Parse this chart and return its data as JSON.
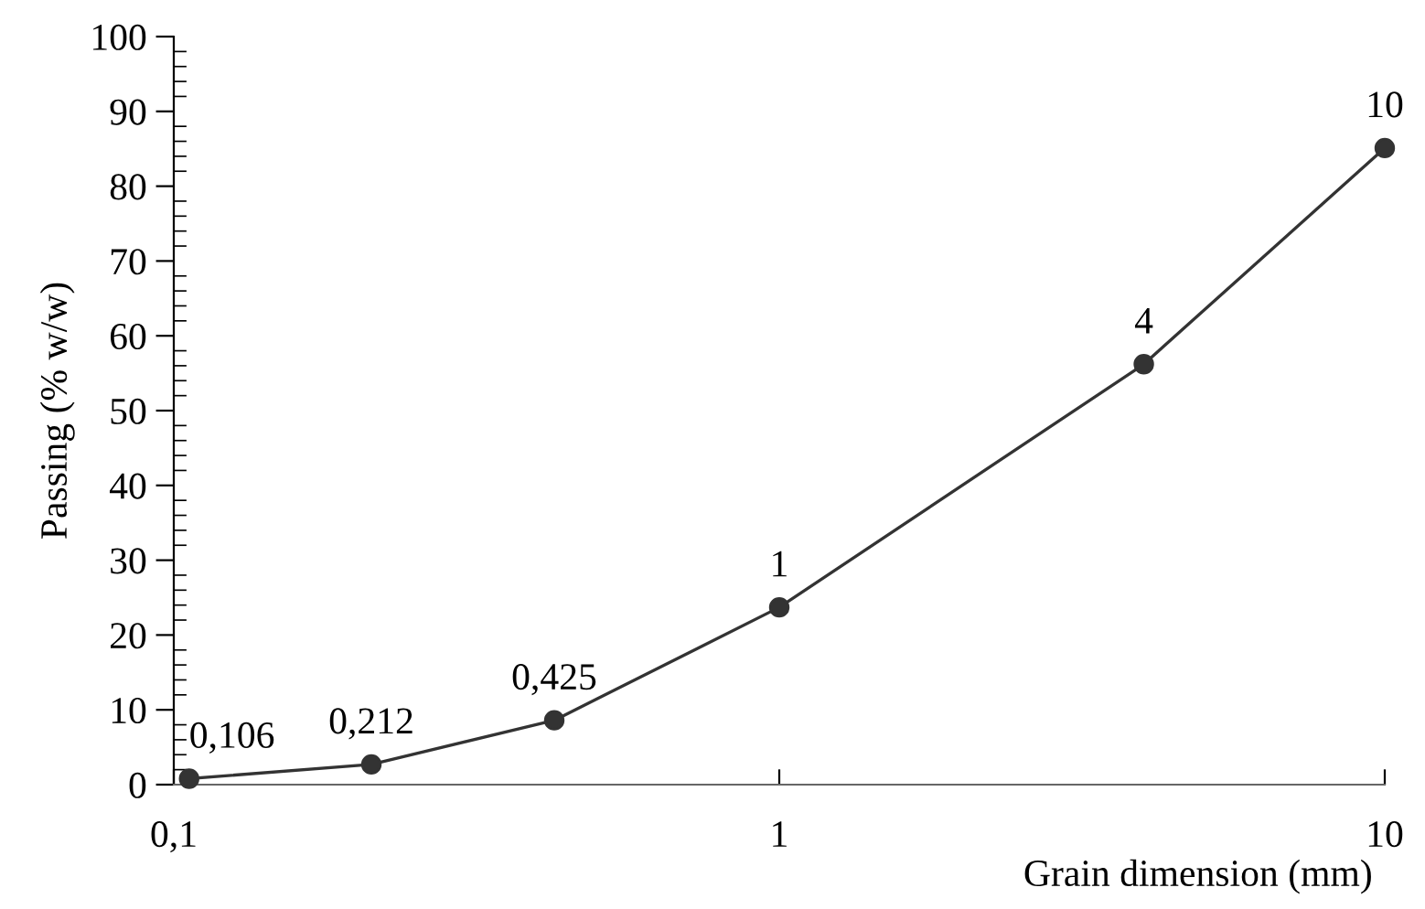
{
  "chart_data": {
    "type": "line",
    "xlabel": "Grain dimension (mm)",
    "ylabel": "Passing (% w/w)",
    "x": [
      0.106,
      0.212,
      0.425,
      1,
      4,
      10
    ],
    "series": [
      {
        "color": "#333333",
        "values": [
          0.8,
          2.7,
          8.6,
          23.7,
          56.2,
          85.1
        ]
      }
    ],
    "log": "x",
    "marker": "circle",
    "line_style": "solid",
    "grid": false,
    "xlim": [
      0.1,
      10
    ],
    "xticks": [
      {
        "value": 0.1,
        "label": "0,1"
      },
      1,
      10
    ],
    "ylim": [
      0,
      100
    ],
    "yticks": [
      0,
      10,
      20,
      30,
      40,
      50,
      60,
      70,
      80,
      90,
      100
    ],
    "annotations": [
      {
        "text": "0,106",
        "x": 0.106,
        "y": 0.8
      },
      {
        "text": "0,212",
        "x": 0.212,
        "y": 2.7
      },
      {
        "text": "0,425",
        "x": 0.425,
        "y": 8.6
      },
      {
        "text": "1",
        "x": 1,
        "y": 23.7
      },
      {
        "text": "4",
        "x": 4,
        "y": 56.2
      },
      {
        "text": "10",
        "x": 10,
        "y": 85.1
      }
    ]
  }
}
